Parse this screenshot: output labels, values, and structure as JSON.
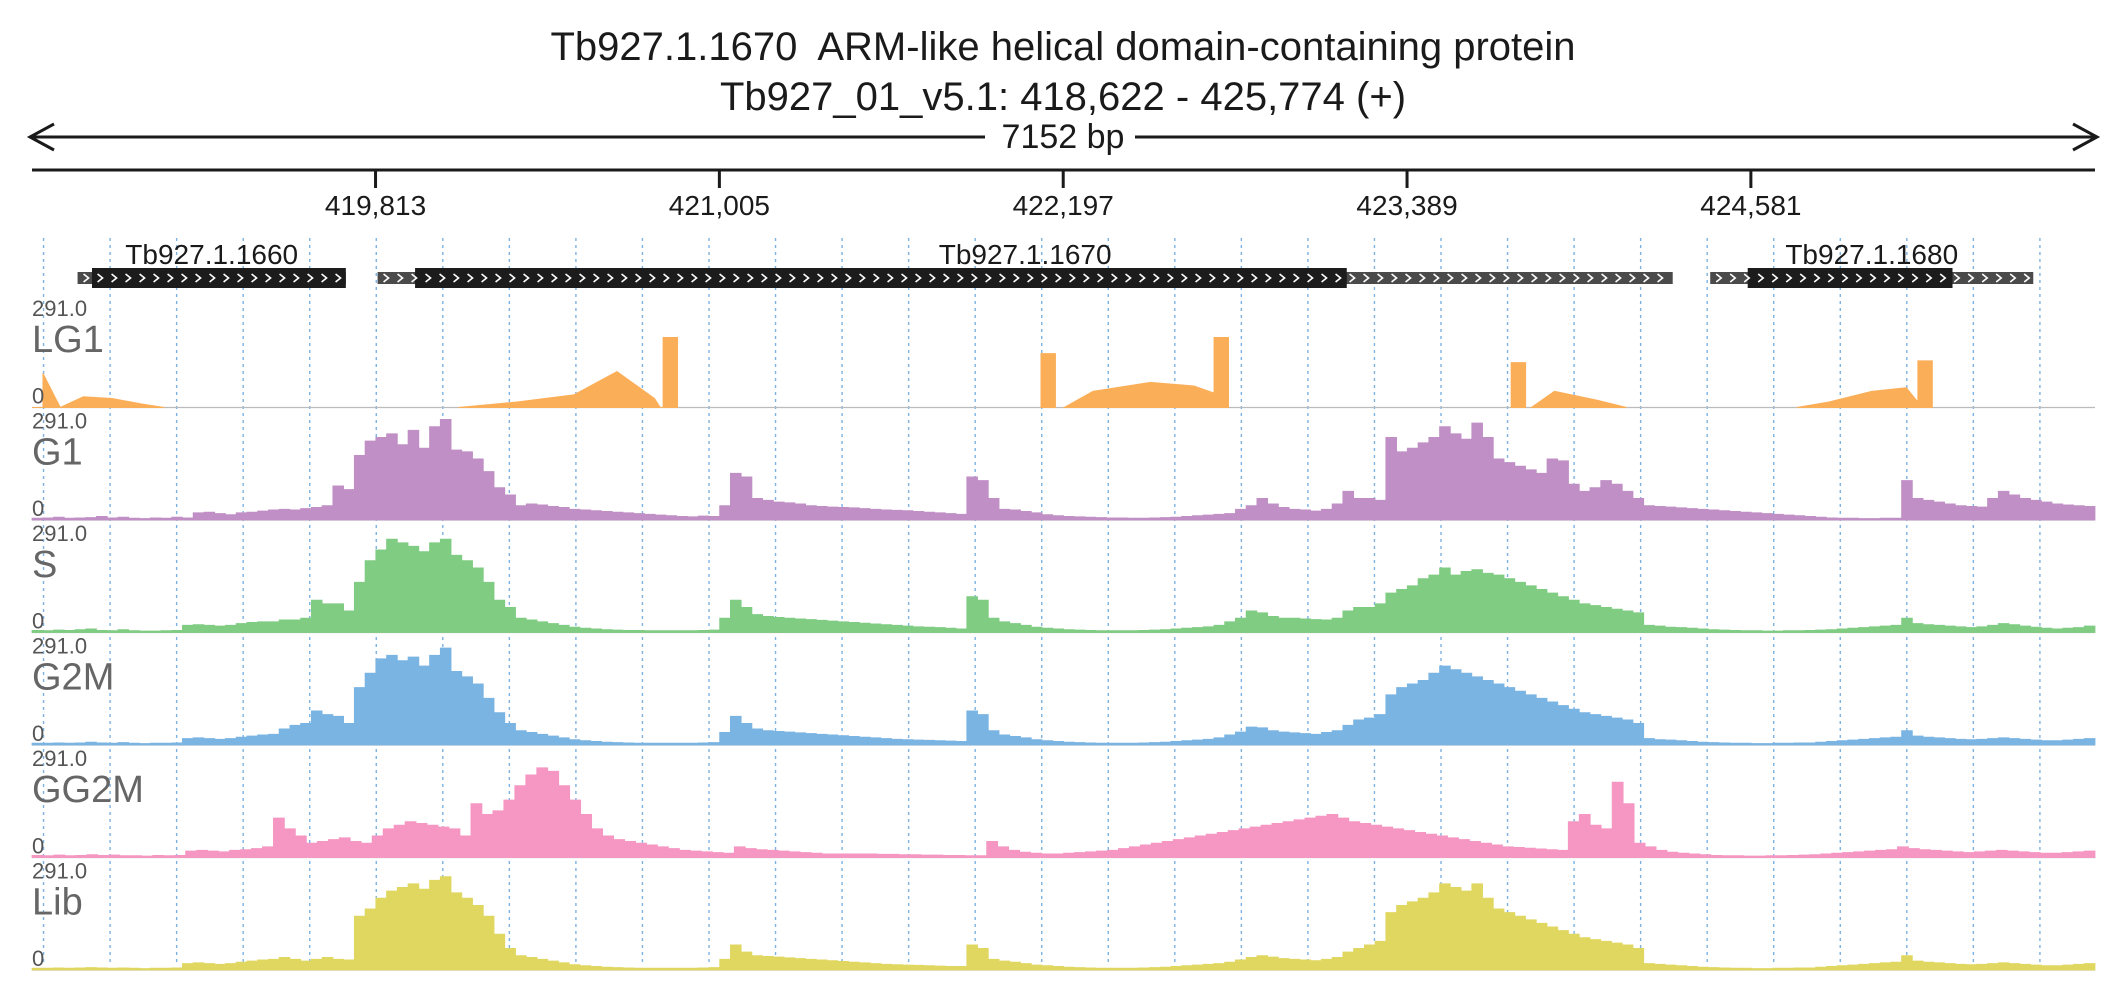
{
  "header": {
    "title": "Tb927.1.1670  ARM-like helical domain-containing protein",
    "location": "Tb927_01_v5.1: 418,622 - 425,774 (+)",
    "length_label": "7152 bp"
  },
  "colors": {
    "LG1": "#fbae58",
    "G1": "#c08fc5",
    "S": "#7fcc82",
    "G2M": "#7ab4e2",
    "GG2M": "#f597c2",
    "Lib": "#e0d761",
    "gene_cds": "#1c1c1c",
    "gene_utr": "#4a4a4a",
    "grid": "#7db2e0"
  },
  "chart_data": {
    "type": "area",
    "title": "Tb927.1.1670  ARM-like helical domain-containing protein",
    "subtitle": "Tb927_01_v5.1: 418,622 - 425,774 (+)",
    "xlim": [
      418622,
      425774
    ],
    "x_ticks": [
      419813,
      421005,
      422197,
      423389,
      424581
    ],
    "x_tick_labels": [
      "419,813",
      "421,005",
      "422,197",
      "423,389",
      "424,581"
    ],
    "ylim": [
      0,
      291.0
    ],
    "y_max_label": "291.0",
    "y_min_label": "0",
    "genes": [
      {
        "name": "Tb927.1.1660",
        "start": 418780,
        "end": 419710,
        "cds_start": 418830,
        "cds_end": 419710,
        "strand": "+"
      },
      {
        "name": "Tb927.1.1670",
        "start": 419820,
        "end": 424310,
        "cds_start": 419950,
        "cds_end": 423180,
        "strand": "+"
      },
      {
        "name": "Tb927.1.1680",
        "start": 424440,
        "end": 425560,
        "cds_start": 424570,
        "cds_end": 425280,
        "strand": "+"
      }
    ],
    "tracks": [
      {
        "name": "LG1",
        "segments": [
          {
            "x": [
              418622,
              418660,
              418660,
              418720,
              418800,
              418900,
              419000,
              419080
            ],
            "y": [
              0,
              0,
              95,
              0,
              30,
              25,
              10,
              0
            ]
          },
          {
            "x": [
              420100,
              420300,
              420500,
              420650,
              420780,
              420800,
              420800,
              420860,
              420860
            ],
            "y": [
              0,
              15,
              35,
              100,
              25,
              0,
              0,
              0,
              0
            ]
          },
          {
            "x": [
              420810,
              420810,
              420860,
              420860
            ],
            "y": [
              0,
              195,
              195,
              0
            ]
          },
          {
            "x": [
              422120,
              422120,
              422170,
              422170
            ],
            "y": [
              0,
              150,
              150,
              0
            ]
          },
          {
            "x": [
              422200,
              422300,
              422500,
              422650,
              422720,
              422720,
              422770,
              422770
            ],
            "y": [
              0,
              45,
              70,
              60,
              40,
              195,
              195,
              0
            ]
          },
          {
            "x": [
              423750,
              423750,
              423800,
              423800
            ],
            "y": [
              0,
              125,
              125,
              0
            ]
          },
          {
            "x": [
              423820,
              423900,
              424050,
              424150
            ],
            "y": [
              0,
              45,
              20,
              0
            ]
          },
          {
            "x": [
              424740,
              424850,
              425000,
              425120,
              425160,
              425160,
              425210,
              425210
            ],
            "y": [
              0,
              15,
              45,
              55,
              15,
              130,
              130,
              0
            ]
          }
        ]
      },
      {
        "name": "G1",
        "samples": [
          5,
          6,
          8,
          5,
          6,
          7,
          10,
          6,
          8,
          5,
          4,
          6,
          5,
          8,
          6,
          20,
          22,
          18,
          15,
          20,
          22,
          25,
          28,
          30,
          28,
          32,
          35,
          40,
          95,
          85,
          180,
          220,
          230,
          240,
          210,
          250,
          200,
          260,
          280,
          195,
          190,
          170,
          135,
          90,
          70,
          40,
          45,
          42,
          38,
          35,
          30,
          28,
          26,
          24,
          22,
          20,
          18,
          16,
          14,
          12,
          10,
          9,
          11,
          10,
          40,
          130,
          120,
          60,
          55,
          50,
          48,
          45,
          40,
          38,
          36,
          35,
          34,
          32,
          30,
          28,
          27,
          26,
          24,
          22,
          20,
          18,
          16,
          120,
          110,
          60,
          30,
          28,
          24,
          20,
          15,
          12,
          10,
          9,
          8,
          7,
          6,
          6,
          5,
          5,
          6,
          7,
          8,
          10,
          12,
          14,
          16,
          18,
          30,
          40,
          60,
          45,
          35,
          30,
          28,
          25,
          30,
          45,
          80,
          60,
          60,
          55,
          230,
          190,
          200,
          215,
          230,
          260,
          240,
          225,
          270,
          230,
          170,
          160,
          150,
          140,
          130,
          170,
          165,
          100,
          80,
          90,
          110,
          100,
          80,
          60,
          40,
          38,
          36,
          34,
          32,
          30,
          28,
          26,
          24,
          22,
          20,
          18,
          16,
          14,
          12,
          10,
          8,
          6,
          5,
          5,
          4,
          4,
          5,
          5,
          110,
          60,
          55,
          50,
          45,
          40,
          38,
          36,
          60,
          80,
          70,
          60,
          55,
          50,
          45,
          42,
          40,
          38
        ]
      },
      {
        "name": "S",
        "samples": [
          6,
          5,
          7,
          6,
          8,
          10,
          6,
          5,
          8,
          5,
          4,
          4,
          5,
          6,
          20,
          22,
          20,
          18,
          20,
          25,
          28,
          30,
          30,
          35,
          35,
          40,
          90,
          80,
          80,
          60,
          140,
          200,
          230,
          260,
          250,
          240,
          225,
          250,
          260,
          215,
          200,
          180,
          140,
          90,
          70,
          40,
          35,
          30,
          25,
          20,
          15,
          12,
          10,
          8,
          7,
          6,
          6,
          5,
          5,
          5,
          5,
          5,
          6,
          7,
          40,
          90,
          70,
          50,
          45,
          42,
          40,
          38,
          36,
          34,
          32,
          30,
          28,
          26,
          24,
          22,
          20,
          18,
          16,
          15,
          14,
          12,
          10,
          100,
          90,
          40,
          30,
          25,
          20,
          15,
          12,
          10,
          8,
          7,
          6,
          5,
          5,
          5,
          5,
          6,
          7,
          8,
          10,
          12,
          14,
          16,
          20,
          30,
          40,
          60,
          55,
          45,
          40,
          40,
          38,
          36,
          35,
          40,
          60,
          70,
          70,
          80,
          110,
          120,
          130,
          150,
          160,
          180,
          160,
          170,
          175,
          165,
          160,
          150,
          140,
          130,
          120,
          110,
          100,
          90,
          80,
          75,
          70,
          65,
          60,
          55,
          20,
          18,
          15,
          14,
          12,
          10,
          8,
          7,
          6,
          5,
          5,
          4,
          4,
          5,
          5,
          6,
          7,
          8,
          10,
          12,
          14,
          16,
          18,
          20,
          40,
          25,
          22,
          20,
          18,
          16,
          14,
          16,
          20,
          25,
          22,
          18,
          15,
          12,
          10,
          12,
          14,
          18
        ]
      },
      {
        "name": "G2M",
        "samples": [
          5,
          5,
          6,
          5,
          6,
          8,
          6,
          5,
          7,
          5,
          4,
          5,
          5,
          6,
          18,
          20,
          18,
          16,
          18,
          22,
          25,
          28,
          30,
          45,
          55,
          60,
          95,
          85,
          80,
          60,
          160,
          200,
          240,
          250,
          235,
          245,
          220,
          250,
          270,
          205,
          190,
          170,
          130,
          90,
          60,
          40,
          35,
          30,
          25,
          20,
          15,
          12,
          10,
          8,
          7,
          6,
          5,
          5,
          5,
          5,
          5,
          5,
          6,
          7,
          35,
          80,
          60,
          45,
          40,
          38,
          36,
          34,
          32,
          30,
          28,
          26,
          24,
          22,
          20,
          18,
          16,
          15,
          14,
          13,
          12,
          11,
          10,
          95,
          85,
          40,
          28,
          24,
          20,
          15,
          12,
          10,
          8,
          7,
          6,
          5,
          5,
          5,
          5,
          6,
          7,
          8,
          10,
          12,
          14,
          16,
          20,
          28,
          36,
          50,
          48,
          40,
          36,
          34,
          32,
          30,
          35,
          40,
          55,
          70,
          75,
          85,
          140,
          160,
          170,
          180,
          200,
          220,
          210,
          200,
          190,
          180,
          170,
          160,
          150,
          140,
          130,
          120,
          110,
          100,
          90,
          85,
          80,
          75,
          70,
          60,
          18,
          15,
          14,
          12,
          10,
          8,
          7,
          6,
          5,
          5,
          4,
          4,
          5,
          5,
          6,
          6,
          8,
          10,
          12,
          14,
          16,
          18,
          20,
          22,
          40,
          25,
          22,
          20,
          18,
          16,
          15,
          16,
          18,
          20,
          18,
          16,
          14,
          12,
          12,
          14,
          16,
          18
        ]
      },
      {
        "name": "GG2M",
        "samples": [
          6,
          5,
          7,
          5,
          6,
          8,
          6,
          7,
          5,
          5,
          4,
          6,
          5,
          6,
          18,
          20,
          18,
          16,
          20,
          22,
          25,
          30,
          110,
          80,
          60,
          40,
          45,
          50,
          55,
          45,
          40,
          60,
          80,
          90,
          100,
          95,
          90,
          85,
          80,
          60,
          150,
          120,
          130,
          160,
          200,
          230,
          250,
          240,
          200,
          160,
          120,
          80,
          60,
          50,
          45,
          40,
          35,
          30,
          25,
          20,
          18,
          16,
          14,
          12,
          30,
          25,
          22,
          20,
          18,
          16,
          14,
          12,
          10,
          10,
          10,
          10,
          10,
          9,
          9,
          8,
          8,
          7,
          7,
          6,
          6,
          5,
          5,
          45,
          30,
          20,
          15,
          12,
          10,
          10,
          12,
          14,
          16,
          18,
          20,
          25,
          30,
          35,
          40,
          45,
          50,
          55,
          60,
          65,
          70,
          75,
          80,
          85,
          90,
          95,
          100,
          105,
          110,
          115,
          120,
          110,
          100,
          95,
          90,
          85,
          80,
          75,
          70,
          65,
          60,
          55,
          50,
          45,
          40,
          35,
          30,
          28,
          26,
          24,
          22,
          20,
          100,
          120,
          90,
          80,
          210,
          150,
          40,
          30,
          20,
          15,
          12,
          10,
          8,
          6,
          5,
          5,
          4,
          4,
          5,
          5,
          6,
          7,
          8,
          10,
          12,
          14,
          16,
          18,
          20,
          22,
          30,
          25,
          22,
          20,
          18,
          16,
          14,
          16,
          18,
          20,
          18,
          16,
          14,
          12,
          12,
          14,
          16,
          18
        ]
      },
      {
        "name": "Lib",
        "samples": [
          5,
          5,
          6,
          5,
          6,
          7,
          6,
          5,
          6,
          5,
          4,
          5,
          5,
          6,
          18,
          20,
          18,
          16,
          18,
          22,
          25,
          28,
          30,
          35,
          30,
          25,
          30,
          35,
          30,
          28,
          150,
          170,
          200,
          220,
          230,
          240,
          225,
          250,
          260,
          215,
          200,
          180,
          150,
          100,
          60,
          40,
          35,
          30,
          25,
          20,
          15,
          12,
          10,
          8,
          7,
          6,
          5,
          5,
          5,
          5,
          5,
          5,
          6,
          7,
          30,
          70,
          50,
          40,
          38,
          36,
          34,
          32,
          30,
          28,
          26,
          24,
          22,
          20,
          18,
          16,
          15,
          14,
          13,
          12,
          11,
          10,
          10,
          70,
          60,
          30,
          25,
          22,
          18,
          14,
          12,
          10,
          8,
          7,
          6,
          5,
          5,
          5,
          5,
          6,
          7,
          8,
          10,
          12,
          14,
          16,
          18,
          22,
          28,
          35,
          40,
          36,
          32,
          30,
          28,
          26,
          30,
          35,
          50,
          60,
          70,
          80,
          160,
          180,
          190,
          200,
          215,
          240,
          230,
          220,
          240,
          200,
          170,
          160,
          150,
          140,
          130,
          120,
          110,
          100,
          90,
          85,
          80,
          75,
          70,
          60,
          18,
          16,
          14,
          12,
          10,
          8,
          7,
          6,
          5,
          5,
          4,
          4,
          5,
          5,
          6,
          6,
          8,
          10,
          12,
          14,
          16,
          18,
          20,
          22,
          40,
          25,
          22,
          20,
          18,
          16,
          15,
          16,
          18,
          20,
          18,
          16,
          14,
          12,
          12,
          14,
          16,
          18
        ]
      }
    ]
  }
}
